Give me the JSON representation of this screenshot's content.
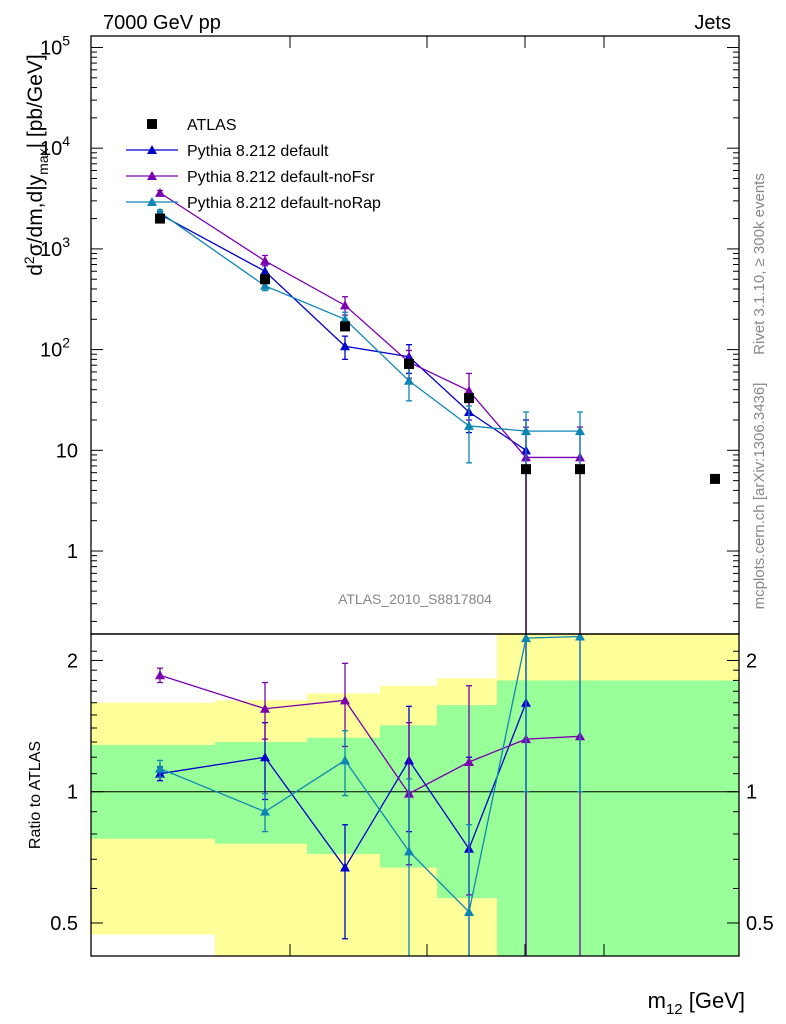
{
  "header": {
    "title_left": "7000 GeV pp",
    "title_right": "Jets",
    "side_top": "Rivet 3.1.10, ≥ 300k events",
    "side_bottom": "mcplots.cern.ch [arXiv:1306.3436]",
    "analysis": "ATLAS_2010_S8817804"
  },
  "colors": {
    "atlas": "#000000",
    "default": "#0000cc",
    "noFsr": "#7b00b0",
    "noRap": "#0e86b5",
    "band_inner": "#99ff99",
    "band_outer": "#ffff99",
    "label_gray": "#888888"
  },
  "chart_data": [
    {
      "type": "scatter",
      "panel": "main",
      "xlabel": "m12 [GeV]",
      "ylabel": "d2σ/dm,d|y_max| [pb/GeV]",
      "yscale": "log",
      "ylim": [
        0.15,
        130000
      ],
      "y_ticks": [
        {
          "v": 1,
          "label": "1"
        },
        {
          "v": 10,
          "label": "10"
        },
        {
          "v": 100,
          "label": "10",
          "exp": "2"
        },
        {
          "v": 1000,
          "label": "10",
          "exp": "3"
        },
        {
          "v": 10000,
          "label": "10",
          "exp": "4"
        },
        {
          "v": 100000,
          "label": "10",
          "exp": "5"
        }
      ],
      "x_bins": [
        1,
        2,
        3,
        4,
        5,
        6,
        7,
        8
      ],
      "legend": [
        {
          "key": "atlas",
          "label": "ATLAS",
          "marker": "square"
        },
        {
          "key": "default",
          "label": "Pythia 8.212 default",
          "marker": "triangle"
        },
        {
          "key": "noFsr",
          "label": "Pythia 8.212 default-noFsr",
          "marker": "triangle"
        },
        {
          "key": "noRap",
          "label": "Pythia 8.212 default-noRap",
          "marker": "triangle"
        }
      ],
      "series": [
        {
          "key": "atlas",
          "name": "ATLAS",
          "points": [
            {
              "x": 1,
              "y": 2000
            },
            {
              "x": 2,
              "y": 500
            },
            {
              "x": 3,
              "y": 170
            },
            {
              "x": 4,
              "y": 72
            },
            {
              "x": 5,
              "y": 33
            },
            {
              "x": 6,
              "y": 6.5
            },
            {
              "x": 7,
              "y": 6.5
            },
            {
              "x": 8,
              "y": 5.2
            }
          ]
        },
        {
          "key": "default",
          "name": "Pythia 8.212 default",
          "points": [
            {
              "x": 1,
              "y": 2200,
              "lo": 2050,
              "hi": 2350
            },
            {
              "x": 2,
              "y": 600,
              "lo": 480,
              "hi": 720
            },
            {
              "x": 3,
              "y": 108,
              "lo": 80,
              "hi": 136
            },
            {
              "x": 4,
              "y": 85,
              "lo": 58,
              "hi": 112
            },
            {
              "x": 5,
              "y": 24,
              "lo": 15,
              "hi": 33
            },
            {
              "x": 6,
              "y": 10,
              "lo": 0.05,
              "hi": 20
            }
          ]
        },
        {
          "key": "noFsr",
          "name": "Pythia 8.212 default-noFsr",
          "points": [
            {
              "x": 1,
              "y": 3600,
              "lo": 3400,
              "hi": 3800
            },
            {
              "x": 2,
              "y": 760,
              "lo": 680,
              "hi": 860
            },
            {
              "x": 3,
              "y": 275,
              "lo": 220,
              "hi": 335
            },
            {
              "x": 4,
              "y": 75,
              "lo": 52,
              "hi": 98
            },
            {
              "x": 5,
              "y": 39,
              "lo": 20,
              "hi": 58
            },
            {
              "x": 6,
              "y": 8.5,
              "lo": 0.05,
              "hi": 17
            },
            {
              "x": 7,
              "y": 8.5,
              "lo": 0.05,
              "hi": 17
            }
          ]
        },
        {
          "key": "noRap",
          "name": "Pythia 8.212 default-noRap",
          "points": [
            {
              "x": 1,
              "y": 2300,
              "lo": 2150,
              "hi": 2450
            },
            {
              "x": 2,
              "y": 430,
              "lo": 385,
              "hi": 475
            },
            {
              "x": 3,
              "y": 200,
              "lo": 165,
              "hi": 235
            },
            {
              "x": 4,
              "y": 49,
              "lo": 31,
              "hi": 67
            },
            {
              "x": 5,
              "y": 17.5,
              "lo": 7.5,
              "hi": 27.5
            },
            {
              "x": 6,
              "y": 15.5,
              "lo": 7,
              "hi": 24
            },
            {
              "x": 7,
              "y": 15.5,
              "lo": 7,
              "hi": 24
            }
          ]
        }
      ]
    },
    {
      "type": "scatter",
      "panel": "ratio",
      "ylabel": "Ratio to ATLAS",
      "yscale": "log",
      "ylim": [
        0.42,
        2.3
      ],
      "y_ticks": [
        {
          "v": 0.5,
          "label": "0.5"
        },
        {
          "v": 1,
          "label": "1"
        },
        {
          "v": 2,
          "label": "2"
        }
      ],
      "reference": 1,
      "bands": [
        {
          "x0": 0.5,
          "x1": 1.5,
          "inner": [
            0.78,
            1.28
          ],
          "outer": [
            0.47,
            1.6
          ]
        },
        {
          "x0": 1.5,
          "x1": 2.5,
          "inner": [
            0.76,
            1.3
          ],
          "outer": [
            0.4,
            1.62
          ]
        },
        {
          "x0": 2.5,
          "x1": 3.5,
          "inner": [
            0.72,
            1.33
          ],
          "outer": [
            0.25,
            1.68
          ]
        },
        {
          "x0": 3.5,
          "x1": 4.5,
          "inner": [
            0.67,
            1.42
          ],
          "outer": [
            0.25,
            1.75
          ]
        },
        {
          "x0": 4.5,
          "x1": 5.5,
          "inner": [
            0.57,
            1.58
          ],
          "outer": [
            0.25,
            1.82
          ]
        },
        {
          "x0": 5.5,
          "x1": 7.5,
          "inner": [
            0.25,
            1.8
          ],
          "outer": [
            0.25,
            2.6
          ]
        },
        {
          "x0": 7.5,
          "x1": 8.5,
          "inner": [
            0.25,
            1.8
          ],
          "outer": [
            0.25,
            2.6
          ]
        }
      ],
      "series": [
        {
          "key": "default",
          "name": "Pythia 8.212 default",
          "points": [
            {
              "x": 1,
              "y": 1.1,
              "lo": 1.06,
              "hi": 1.14
            },
            {
              "x": 2,
              "y": 1.2,
              "lo": 0.96,
              "hi": 1.44
            },
            {
              "x": 3,
              "y": 0.67,
              "lo": 0.46,
              "hi": 0.84
            },
            {
              "x": 4,
              "y": 1.18,
              "lo": 0.81,
              "hi": 1.57
            },
            {
              "x": 5,
              "y": 0.74,
              "lo": 0.3,
              "hi": 1.2
            },
            {
              "x": 6,
              "y": 1.6,
              "lo": 0.3,
              "hi": 3.0
            }
          ]
        },
        {
          "key": "noFsr",
          "name": "Pythia 8.212 default-noFsr",
          "points": [
            {
              "x": 1,
              "y": 1.85,
              "lo": 1.78,
              "hi": 1.92
            },
            {
              "x": 2,
              "y": 1.55,
              "lo": 1.32,
              "hi": 1.78
            },
            {
              "x": 3,
              "y": 1.62,
              "lo": 1.27,
              "hi": 1.97
            },
            {
              "x": 4,
              "y": 0.99,
              "lo": 0.68,
              "hi": 1.44
            },
            {
              "x": 5,
              "y": 1.17,
              "lo": 0.58,
              "hi": 1.75
            },
            {
              "x": 6,
              "y": 1.32,
              "lo": 0.3,
              "hi": 3.0
            },
            {
              "x": 7,
              "y": 1.34,
              "lo": 0.3,
              "hi": 3.0
            }
          ]
        },
        {
          "key": "noRap",
          "name": "Pythia 8.212 default-noRap",
          "points": [
            {
              "x": 1,
              "y": 1.13,
              "lo": 1.08,
              "hi": 1.18
            },
            {
              "x": 2,
              "y": 0.9,
              "lo": 0.81,
              "hi": 0.99
            },
            {
              "x": 3,
              "y": 1.18,
              "lo": 0.98,
              "hi": 1.38
            },
            {
              "x": 4,
              "y": 0.73,
              "lo": 0.39,
              "hi": 1.07
            },
            {
              "x": 5,
              "y": 0.53,
              "lo": 0.25,
              "hi": 0.84
            },
            {
              "x": 6,
              "y": 2.25,
              "lo": 1.0,
              "hi": 3.5
            },
            {
              "x": 7,
              "y": 2.27,
              "lo": 1.0,
              "hi": 3.5
            }
          ]
        }
      ]
    }
  ]
}
